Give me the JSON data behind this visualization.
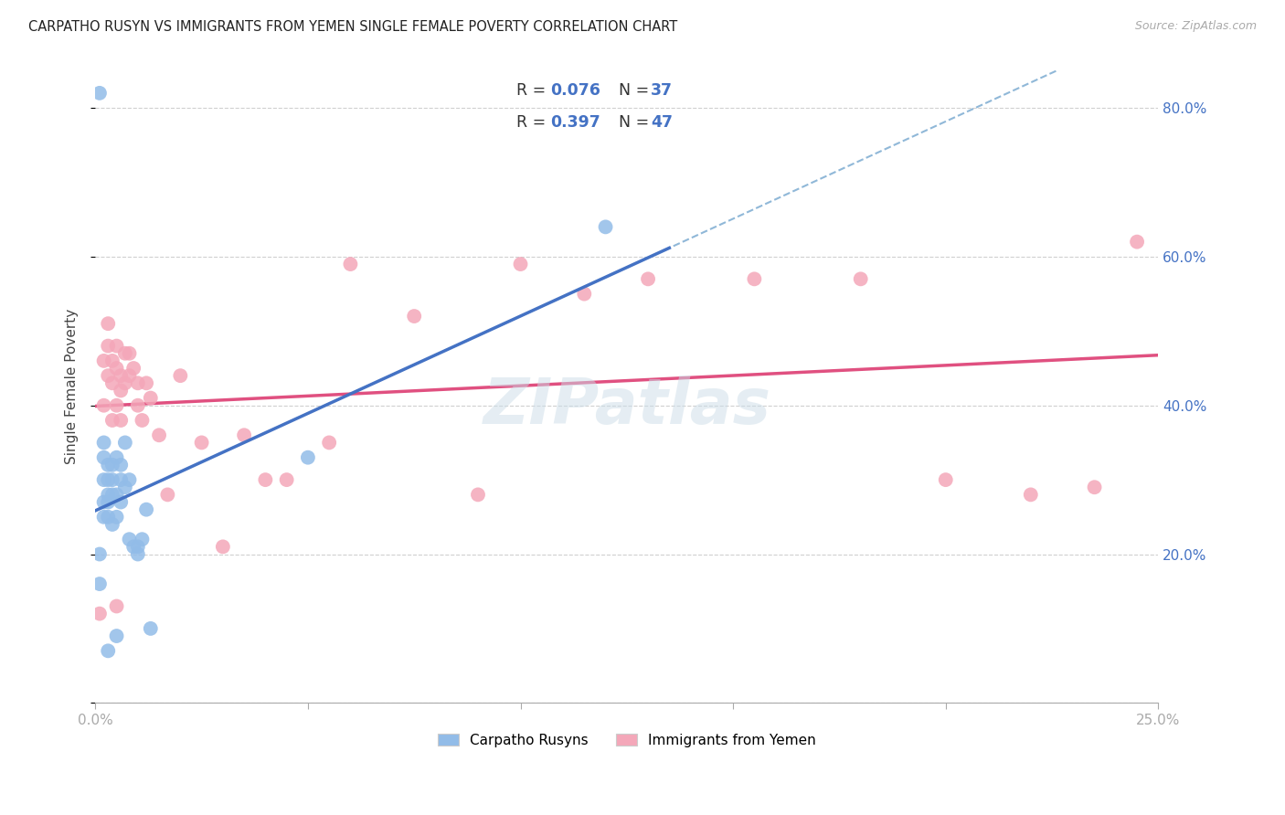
{
  "title": "CARPATHO RUSYN VS IMMIGRANTS FROM YEMEN SINGLE FEMALE POVERTY CORRELATION CHART",
  "source": "Source: ZipAtlas.com",
  "ylabel": "Single Female Poverty",
  "xlim": [
    0.0,
    0.25
  ],
  "ylim": [
    0.0,
    0.85
  ],
  "carpatho_color": "#92bce8",
  "yemen_color": "#f4a7b9",
  "trend_blue_color": "#4472c4",
  "trend_pink_color": "#e05080",
  "trend_dash_color": "#90b8d8",
  "blue_R": 0.076,
  "blue_N": 37,
  "pink_R": 0.397,
  "pink_N": 47,
  "blue_x": [
    0.001,
    0.001,
    0.001,
    0.002,
    0.002,
    0.002,
    0.002,
    0.002,
    0.003,
    0.003,
    0.003,
    0.003,
    0.003,
    0.004,
    0.004,
    0.004,
    0.004,
    0.005,
    0.005,
    0.005,
    0.006,
    0.006,
    0.006,
    0.007,
    0.007,
    0.008,
    0.008,
    0.009,
    0.01,
    0.01,
    0.011,
    0.012,
    0.013,
    0.05,
    0.12,
    0.005,
    0.003
  ],
  "blue_y": [
    0.82,
    0.2,
    0.16,
    0.35,
    0.33,
    0.3,
    0.27,
    0.25,
    0.32,
    0.3,
    0.28,
    0.27,
    0.25,
    0.32,
    0.3,
    0.28,
    0.24,
    0.33,
    0.28,
    0.25,
    0.32,
    0.3,
    0.27,
    0.35,
    0.29,
    0.3,
    0.22,
    0.21,
    0.21,
    0.2,
    0.22,
    0.26,
    0.1,
    0.33,
    0.64,
    0.09,
    0.07
  ],
  "pink_x": [
    0.001,
    0.002,
    0.002,
    0.003,
    0.003,
    0.003,
    0.004,
    0.004,
    0.004,
    0.005,
    0.005,
    0.005,
    0.006,
    0.006,
    0.006,
    0.007,
    0.007,
    0.008,
    0.008,
    0.009,
    0.01,
    0.01,
    0.011,
    0.012,
    0.013,
    0.015,
    0.017,
    0.02,
    0.025,
    0.03,
    0.035,
    0.04,
    0.045,
    0.055,
    0.06,
    0.075,
    0.09,
    0.1,
    0.115,
    0.13,
    0.155,
    0.18,
    0.2,
    0.22,
    0.235,
    0.245,
    0.005
  ],
  "pink_y": [
    0.12,
    0.46,
    0.4,
    0.51,
    0.48,
    0.44,
    0.46,
    0.43,
    0.38,
    0.48,
    0.45,
    0.4,
    0.44,
    0.42,
    0.38,
    0.47,
    0.43,
    0.47,
    0.44,
    0.45,
    0.43,
    0.4,
    0.38,
    0.43,
    0.41,
    0.36,
    0.28,
    0.44,
    0.35,
    0.21,
    0.36,
    0.3,
    0.3,
    0.35,
    0.59,
    0.52,
    0.28,
    0.59,
    0.55,
    0.57,
    0.57,
    0.57,
    0.3,
    0.28,
    0.29,
    0.62,
    0.13
  ],
  "background_color": "#ffffff",
  "grid_color": "#d0d0d0"
}
